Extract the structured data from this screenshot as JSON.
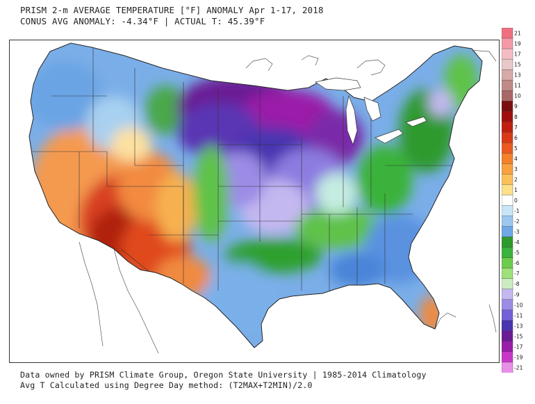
{
  "header": {
    "title": "PRISM 2-m AVERAGE TEMPERATURE [°F] ANOMALY Apr 1-17, 2018",
    "subtitle": "CONUS AVG ANOMALY: -4.34°F | ACTUAL T: 45.39°F"
  },
  "footer": {
    "line1": "Data owned by PRISM Climate Group, Oregon State University | 1985-2014 Climatology",
    "line2": "Avg T Calculated using Degree Day method: (T2MAX+T2MIN)/2.0"
  },
  "legend": {
    "labels": [
      "21",
      "19",
      "17",
      "15",
      "13",
      "11",
      "10",
      "9",
      "8",
      "7",
      "6",
      "5",
      "4",
      "3",
      "2",
      "1",
      "0",
      "-1",
      "-2",
      "-3",
      "-4",
      "-5",
      "-6",
      "-7",
      "-8",
      "-9",
      "-10",
      "-11",
      "-13",
      "-15",
      "-17",
      "-19",
      "-21"
    ],
    "colors": [
      "#f07080",
      "#f39aa6",
      "#f6bcc4",
      "#e8c8c8",
      "#d6aaa8",
      "#c08a86",
      "#a86866",
      "#7a1010",
      "#a01010",
      "#c02010",
      "#d83a18",
      "#ea5a20",
      "#f4802a",
      "#f9a040",
      "#fbc05a",
      "#fde08a",
      "#ffffff",
      "#c8e6f8",
      "#9cc8f0",
      "#6ea8e6",
      "#2e9a2e",
      "#3bb23b",
      "#6ccc4c",
      "#9ee07a",
      "#ccecc2",
      "#c4b8f0",
      "#9c8ce6",
      "#7460d8",
      "#4a34b0",
      "#6a1c94",
      "#9a1ea8",
      "#c838c8",
      "#e890e8"
    ]
  }
}
